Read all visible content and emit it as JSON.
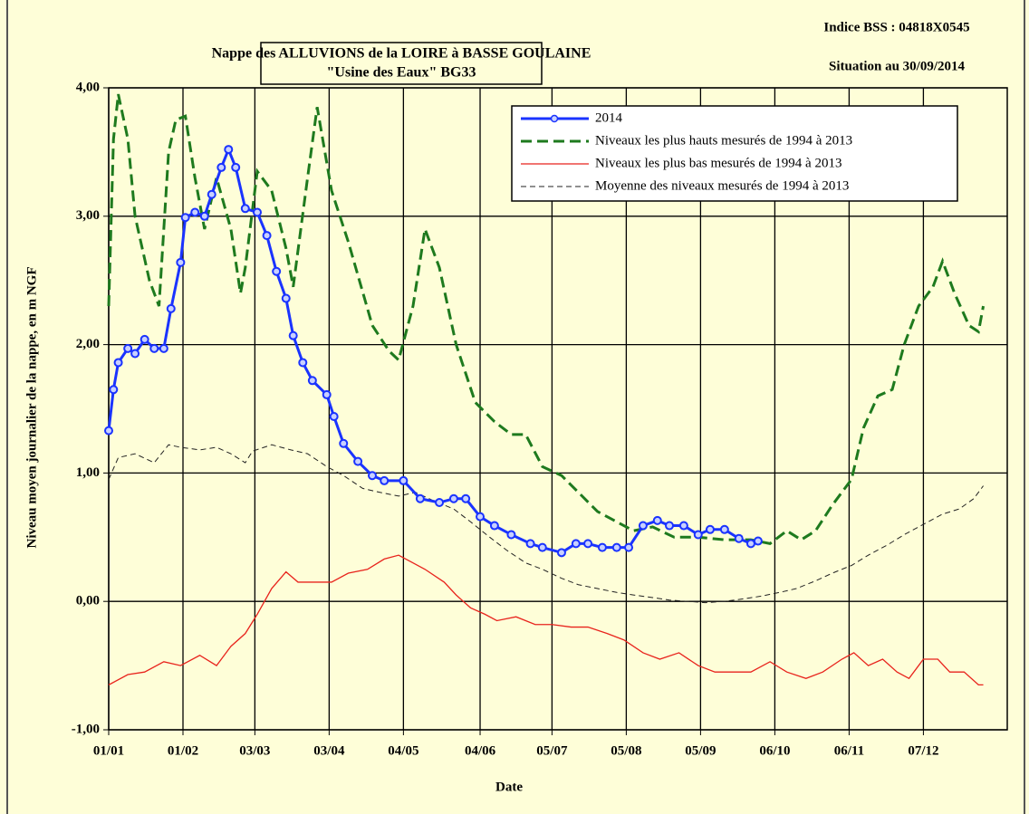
{
  "chart_data": {
    "type": "line",
    "title": "Nappe des ALLUVIONS de la LOIRE à BASSE GOULAINE",
    "subtitle": "\"Usine des Eaux\" BG33",
    "annotations": [
      "Indice BSS : 04818X0545",
      "Situation au 30/09/2014"
    ],
    "xlabel": "Date",
    "ylabel": "Niveau moyen journalier de la nappe, en m NGF",
    "xlim": [
      0,
      375
    ],
    "ylim": [
      -1,
      4
    ],
    "xticks": [
      {
        "value": 0,
        "label": "01/01"
      },
      {
        "value": 31,
        "label": "01/02"
      },
      {
        "value": 61,
        "label": "03/03"
      },
      {
        "value": 92,
        "label": "03/04"
      },
      {
        "value": 123,
        "label": "04/05"
      },
      {
        "value": 155,
        "label": "04/06"
      },
      {
        "value": 185,
        "label": "05/07"
      },
      {
        "value": 216,
        "label": "05/08"
      },
      {
        "value": 247,
        "label": "05/09"
      },
      {
        "value": 278,
        "label": "06/10"
      },
      {
        "value": 309,
        "label": "06/11"
      },
      {
        "value": 340,
        "label": "07/12"
      }
    ],
    "yticks": [
      {
        "value": -1,
        "label": "-1,00"
      },
      {
        "value": 0,
        "label": "0,00"
      },
      {
        "value": 1,
        "label": "1,00"
      },
      {
        "value": 2,
        "label": "2,00"
      },
      {
        "value": 3,
        "label": "3,00"
      },
      {
        "value": 4,
        "label": "4,00"
      }
    ],
    "grid": true,
    "legend": "upper right",
    "series": [
      {
        "name": "2014",
        "color": "#1a33ff",
        "marker": true,
        "dash": false,
        "x": [
          0,
          2,
          4,
          8,
          11,
          15,
          19,
          23,
          26,
          30,
          32,
          36,
          40,
          43,
          47,
          50,
          53,
          57,
          62,
          66,
          70,
          74,
          77,
          81,
          85,
          91,
          94,
          98,
          104,
          110,
          115,
          123,
          130,
          138,
          144,
          149,
          155,
          161,
          168,
          176,
          181,
          189,
          195,
          200,
          206,
          212,
          217,
          223,
          229,
          234,
          240,
          246,
          251,
          257,
          263,
          268,
          271
        ],
        "values": [
          1.33,
          1.65,
          1.86,
          1.97,
          1.93,
          2.04,
          1.97,
          1.97,
          2.28,
          2.64,
          2.99,
          3.03,
          3.0,
          3.17,
          3.38,
          3.52,
          3.38,
          3.06,
          3.03,
          2.85,
          2.57,
          2.36,
          2.07,
          1.86,
          1.72,
          1.61,
          1.44,
          1.23,
          1.09,
          0.98,
          0.94,
          0.94,
          0.8,
          0.77,
          0.8,
          0.8,
          0.66,
          0.59,
          0.52,
          0.45,
          0.42,
          0.38,
          0.45,
          0.45,
          0.42,
          0.42,
          0.42,
          0.59,
          0.63,
          0.59,
          0.59,
          0.52,
          0.56,
          0.56,
          0.49,
          0.45,
          0.47
        ]
      },
      {
        "name": "Niveaux les plus hauts mesurés de 1994 à 2013",
        "color": "#1e7a1e",
        "marker": false,
        "dash": true,
        "x": [
          0,
          2,
          4,
          8,
          11,
          17,
          21,
          25,
          28,
          32,
          36,
          40,
          45,
          51,
          55,
          57,
          62,
          68,
          74,
          77,
          83,
          87,
          93,
          100,
          110,
          117,
          121,
          127,
          132,
          138,
          145,
          153,
          161,
          168,
          174,
          181,
          189,
          196,
          204,
          212,
          219,
          227,
          236,
          246,
          257,
          268,
          276,
          283,
          289,
          295,
          302,
          310,
          315,
          321,
          327,
          332,
          338,
          344,
          348,
          353,
          359,
          363,
          365
        ],
        "values": [
          2.3,
          3.6,
          3.95,
          3.6,
          3.0,
          2.5,
          2.3,
          3.5,
          3.75,
          3.78,
          3.3,
          2.9,
          3.3,
          2.9,
          2.4,
          2.6,
          3.35,
          3.2,
          2.75,
          2.45,
          3.3,
          3.85,
          3.2,
          2.8,
          2.15,
          1.95,
          1.88,
          2.3,
          2.9,
          2.6,
          2.0,
          1.55,
          1.4,
          1.3,
          1.3,
          1.05,
          0.98,
          0.85,
          0.7,
          0.62,
          0.55,
          0.58,
          0.5,
          0.5,
          0.48,
          0.48,
          0.45,
          0.55,
          0.48,
          0.55,
          0.75,
          0.95,
          1.35,
          1.6,
          1.65,
          2.0,
          2.3,
          2.45,
          2.65,
          2.4,
          2.15,
          2.1,
          2.3
        ]
      },
      {
        "name": "Niveaux les plus bas mesurés de 1994 à 2013",
        "color": "#e8231c",
        "marker": false,
        "dash": false,
        "x": [
          0,
          8,
          15,
          23,
          30,
          38,
          45,
          51,
          57,
          62,
          68,
          74,
          79,
          85,
          93,
          100,
          108,
          115,
          121,
          127,
          132,
          140,
          145,
          151,
          157,
          162,
          170,
          178,
          185,
          193,
          200,
          208,
          215,
          223,
          230,
          238,
          246,
          253,
          261,
          268,
          276,
          283,
          291,
          298,
          306,
          311,
          317,
          323,
          329,
          334,
          340,
          346,
          351,
          357,
          363,
          365
        ],
        "values": [
          -0.65,
          -0.57,
          -0.55,
          -0.47,
          -0.5,
          -0.42,
          -0.5,
          -0.35,
          -0.25,
          -0.1,
          0.1,
          0.23,
          0.15,
          0.15,
          0.15,
          0.22,
          0.25,
          0.33,
          0.36,
          0.3,
          0.25,
          0.15,
          0.05,
          -0.05,
          -0.1,
          -0.15,
          -0.12,
          -0.18,
          -0.18,
          -0.2,
          -0.2,
          -0.25,
          -0.3,
          -0.4,
          -0.45,
          -0.4,
          -0.5,
          -0.55,
          -0.55,
          -0.55,
          -0.47,
          -0.55,
          -0.6,
          -0.55,
          -0.45,
          -0.4,
          -0.5,
          -0.45,
          -0.55,
          -0.6,
          -0.45,
          -0.45,
          -0.55,
          -0.55,
          -0.65,
          -0.65
        ]
      },
      {
        "name": "Moyenne des niveaux mesurés de 1994 à 2013",
        "color": "#222222",
        "marker": false,
        "dash": true,
        "x": [
          0,
          4,
          11,
          19,
          25,
          30,
          38,
          45,
          51,
          57,
          60,
          68,
          76,
          83,
          91,
          98,
          106,
          113,
          121,
          128,
          136,
          144,
          151,
          159,
          166,
          174,
          181,
          189,
          196,
          204,
          212,
          219,
          227,
          234,
          242,
          249,
          257,
          265,
          272,
          280,
          287,
          295,
          302,
          310,
          317,
          325,
          332,
          340,
          348,
          355,
          361,
          365
        ],
        "values": [
          0.95,
          1.12,
          1.15,
          1.08,
          1.22,
          1.2,
          1.18,
          1.2,
          1.15,
          1.08,
          1.17,
          1.22,
          1.18,
          1.15,
          1.05,
          0.98,
          0.88,
          0.85,
          0.82,
          0.85,
          0.78,
          0.72,
          0.62,
          0.5,
          0.4,
          0.3,
          0.25,
          0.18,
          0.13,
          0.1,
          0.07,
          0.05,
          0.03,
          0.01,
          0.0,
          -0.01,
          0.0,
          0.02,
          0.04,
          0.07,
          0.1,
          0.16,
          0.22,
          0.28,
          0.36,
          0.44,
          0.52,
          0.6,
          0.68,
          0.72,
          0.8,
          0.9
        ]
      }
    ]
  }
}
